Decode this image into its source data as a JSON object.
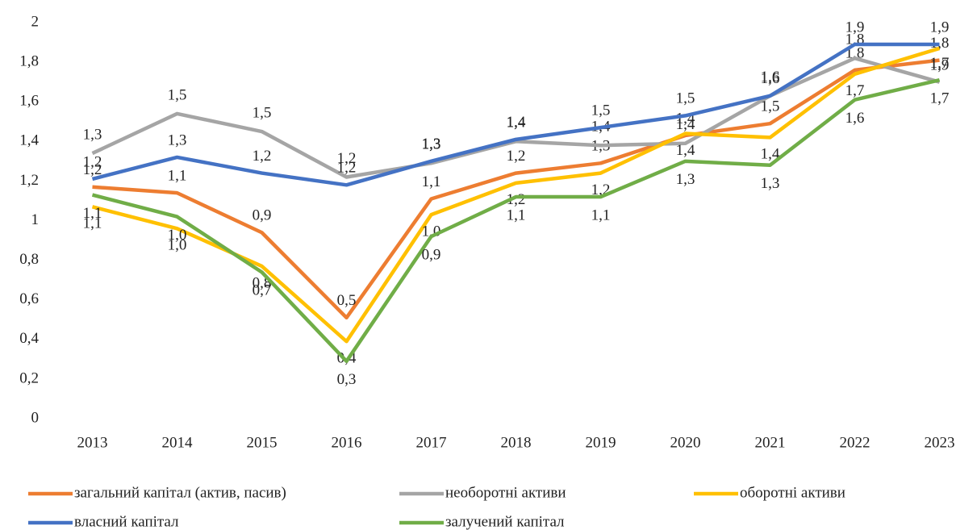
{
  "chart_data": {
    "type": "line",
    "categories": [
      "2013",
      "2014",
      "2015",
      "2016",
      "2017",
      "2018",
      "2019",
      "2020",
      "2021",
      "2022",
      "2023"
    ],
    "ylim": [
      0,
      2
    ],
    "yticks": [
      0,
      {
        "value": 0.2,
        "label": "0,2"
      },
      {
        "value": 0.4,
        "label": "0,4"
      },
      {
        "value": 0.6,
        "label": "0,6"
      },
      {
        "value": 0.8,
        "label": "0,8"
      },
      1,
      {
        "value": 1.2,
        "label": "1,2"
      },
      {
        "value": 1.4,
        "label": "1,4"
      },
      {
        "value": 1.6,
        "label": "1,6"
      },
      {
        "value": 1.8,
        "label": "1,8"
      },
      2
    ],
    "grid": false,
    "series": [
      {
        "name": "загальний капітал (актив, пасив)",
        "color": "#ed7d31",
        "values": [
          1.17,
          1.14,
          0.94,
          0.51,
          1.11,
          1.24,
          1.29,
          1.43,
          1.49,
          1.76,
          1.81
        ],
        "value_labels": [
          "1,2",
          "1,1",
          "0,9",
          "0,5",
          "1,1",
          "1,2",
          "1,3",
          "1,4",
          "1,5",
          "1,8",
          "1,8"
        ]
      },
      {
        "name": "необоротні активи",
        "color": "#a5a5a5",
        "values": [
          1.34,
          1.54,
          1.45,
          1.22,
          1.29,
          1.4,
          1.38,
          1.39,
          1.63,
          1.82,
          1.7
        ],
        "value_labels": [
          "1,3",
          "1,5",
          "1,5",
          "1,2",
          "1,3",
          "1,4",
          "1,4",
          "1,4",
          "1,6",
          "1,8",
          "1,7"
        ]
      },
      {
        "name": "оборотні активи",
        "color": "#ffc000",
        "values": [
          1.07,
          0.96,
          0.77,
          0.39,
          1.03,
          1.19,
          1.24,
          1.44,
          1.42,
          1.74,
          1.87
        ],
        "value_labels": [
          "1,1",
          "1,0",
          "0,8",
          "0,4",
          "1,0",
          "1,2",
          "1,2",
          "1,4",
          "1,4",
          "1,7",
          "1,9"
        ]
      },
      {
        "name": "власний капітал",
        "color": "#4472c4",
        "values": [
          1.21,
          1.32,
          1.24,
          1.18,
          1.3,
          1.41,
          1.47,
          1.53,
          1.63,
          1.89,
          1.89
        ],
        "value_labels": [
          "1,2",
          "1,3",
          "1,2",
          "1,2",
          "1,3",
          "1,4",
          "1,5",
          "1,5",
          "1,6",
          "1,9",
          "1,9"
        ]
      },
      {
        "name": "залучений капітал",
        "color": "#70ad47",
        "values": [
          1.13,
          1.02,
          0.74,
          0.29,
          0.92,
          1.12,
          1.12,
          1.3,
          1.28,
          1.61,
          1.71
        ],
        "value_labels": [
          "1,1",
          "1,0",
          "0,7",
          "0,3",
          "0,9",
          "1,1",
          "1,1",
          "1,3",
          "1,3",
          "1,6",
          "1,7"
        ]
      }
    ]
  }
}
